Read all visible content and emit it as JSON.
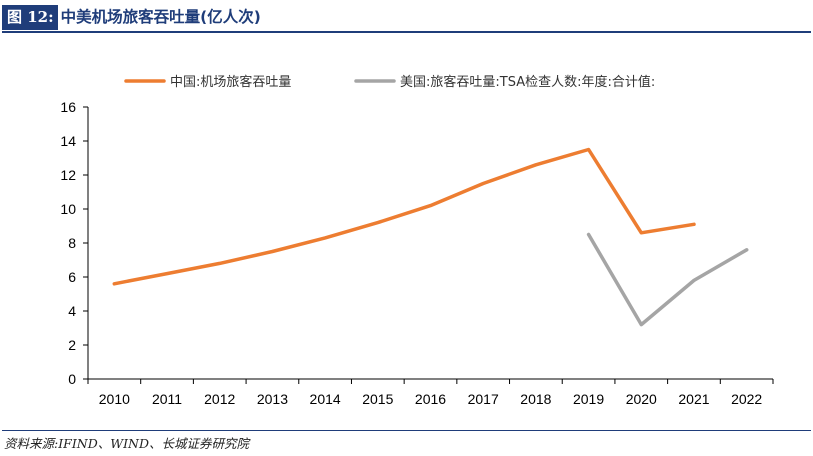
{
  "figure": {
    "tag": "图 12:",
    "title": "中美机场旅客吞吐量(亿人次)",
    "source": "资料来源:IFIND、WIND、长城证券研究院"
  },
  "colors": {
    "header": "#1f3d7a",
    "china_series": "#ed7d31",
    "us_series": "#a5a5a5",
    "axis": "#000000"
  },
  "chart_data": {
    "type": "line",
    "categories": [
      "2010",
      "2011",
      "2012",
      "2013",
      "2014",
      "2015",
      "2016",
      "2017",
      "2018",
      "2019",
      "2020",
      "2021",
      "2022"
    ],
    "ylim": [
      0,
      16
    ],
    "yticks": [
      0,
      2,
      4,
      6,
      8,
      10,
      12,
      14,
      16
    ],
    "grid": false,
    "legend_position": "top",
    "series": [
      {
        "name": "中国:机场旅客吞吐量",
        "color": "#ed7d31",
        "values": [
          5.6,
          6.2,
          6.8,
          7.5,
          8.3,
          9.2,
          10.2,
          11.5,
          12.6,
          13.5,
          8.6,
          9.1,
          null
        ]
      },
      {
        "name": "美国:旅客吞吐量:TSA检查人数:年度:合计值:",
        "color": "#a5a5a5",
        "values": [
          null,
          null,
          null,
          null,
          null,
          null,
          null,
          null,
          null,
          8.5,
          3.2,
          5.8,
          7.6
        ]
      }
    ]
  }
}
